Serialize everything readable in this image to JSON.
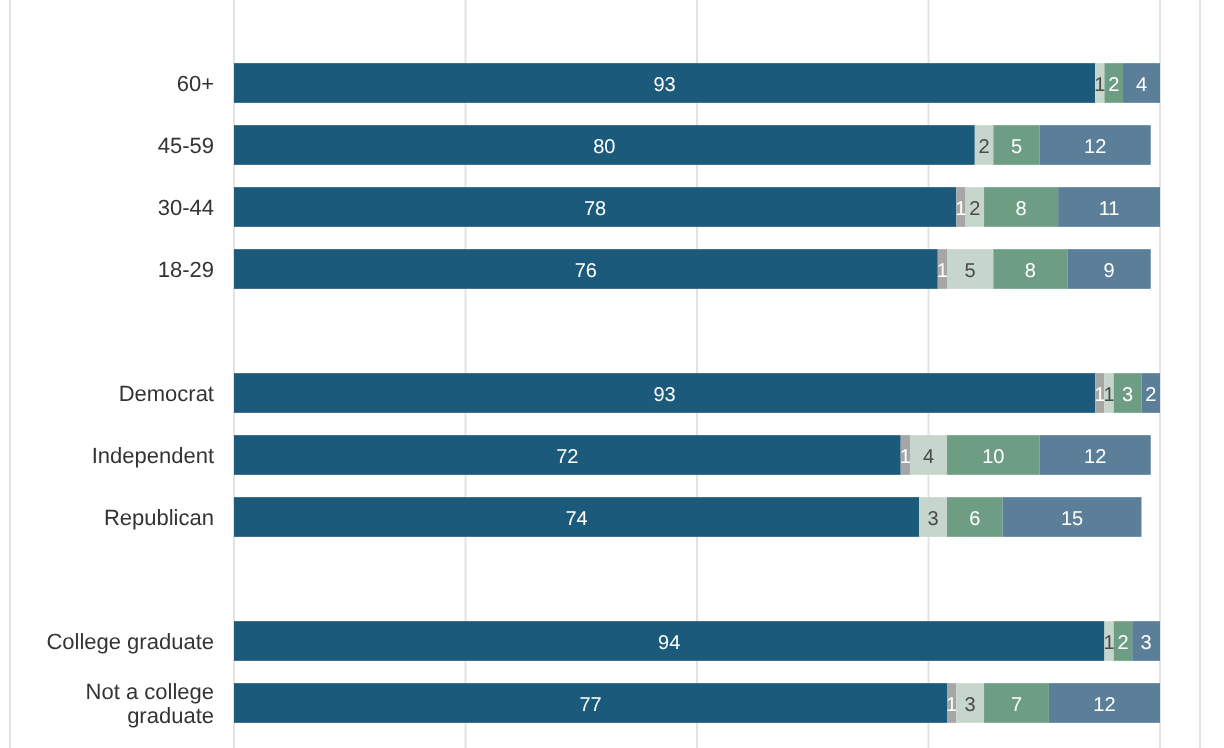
{
  "chart_data": {
    "type": "bar",
    "orientation": "horizontal",
    "stacked": true,
    "data_labels": true,
    "grid": "x",
    "tick_labels": "y",
    "categories": [
      "60+",
      "45-59",
      "30-44",
      "18-29",
      null,
      "Democrat",
      "Independent",
      "Republican",
      null,
      "College graduate",
      "Not a college graduate"
    ],
    "xlim": [
      0,
      100
    ],
    "xticks": [
      {
        "value": 0,
        "label": null
      },
      {
        "value": 25,
        "label": null
      },
      {
        "value": 50,
        "label": null
      },
      {
        "value": 75,
        "label": null
      },
      {
        "value": 100,
        "label": null
      }
    ],
    "series": [
      {
        "color": "#1b5a7a",
        "values": [
          93,
          80,
          78,
          76,
          null,
          93,
          72,
          74,
          null,
          94,
          77
        ]
      },
      {
        "color": "#a6a6a6",
        "values": [
          null,
          null,
          1,
          1,
          null,
          1,
          1,
          null,
          null,
          null,
          1
        ]
      },
      {
        "color": "#c6d6cc",
        "values": [
          1,
          2,
          2,
          5,
          null,
          1,
          4,
          3,
          null,
          1,
          3
        ]
      },
      {
        "color": "#6d9e84",
        "values": [
          2,
          5,
          8,
          8,
          null,
          3,
          10,
          6,
          null,
          2,
          7
        ]
      },
      {
        "color": "#5b7f99",
        "values": [
          4,
          12,
          11,
          9,
          null,
          2,
          12,
          15,
          null,
          3,
          12
        ]
      }
    ]
  }
}
